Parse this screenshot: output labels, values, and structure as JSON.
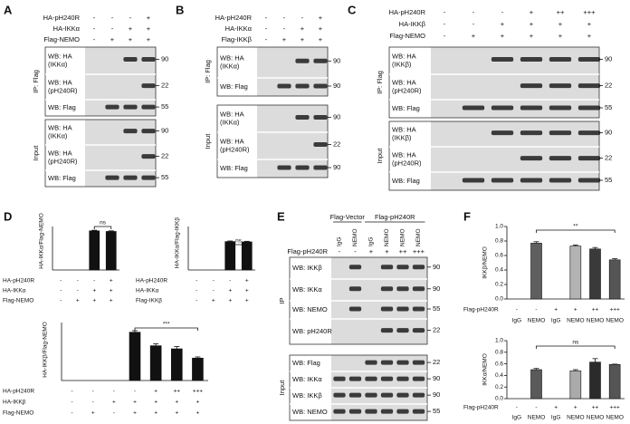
{
  "panels": [
    {
      "label": "A",
      "conditions": [
        {
          "name": "HA-pH240R",
          "signs": [
            "-",
            "-",
            "-",
            "+"
          ]
        },
        {
          "name": "HA-IKKα",
          "signs": [
            "-",
            "-",
            "+",
            "+"
          ]
        },
        {
          "name": "Flag-NEMO",
          "signs": [
            "-",
            "+",
            "+",
            "+"
          ]
        }
      ],
      "ip_label": "IP: Flag",
      "ip_rows": [
        {
          "label": [
            "WB: HA",
            "(IKKα)"
          ],
          "marker": 90
        },
        {
          "label": [
            "WB: HA",
            "(pH240R)"
          ],
          "marker": 22
        },
        {
          "label": [
            "WB: Flag"
          ],
          "marker": 55
        }
      ],
      "input_label": "Input",
      "input_rows": [
        {
          "label": [
            "WB: HA",
            "(IKKα)"
          ],
          "marker": 90
        },
        {
          "label": [
            "WB: HA",
            "(pH240R)"
          ],
          "marker": 22
        },
        {
          "label": [
            "WB: Flag"
          ],
          "marker": 55
        }
      ]
    },
    {
      "label": "B",
      "conditions": [
        {
          "name": "HA-pH240R",
          "signs": [
            "-",
            "-",
            "-",
            "+"
          ]
        },
        {
          "name": "HA-IKKα",
          "signs": [
            "-",
            "-",
            "+",
            "+"
          ]
        },
        {
          "name": "Flag-IKKβ",
          "signs": [
            "-",
            "+",
            "+",
            "+"
          ]
        }
      ],
      "ip_label": "IP: Flag",
      "ip_rows": [
        {
          "label": [
            "WB: HA",
            "(IKKα)"
          ],
          "marker": 90
        },
        {
          "label": [
            "WB: Flag"
          ],
          "marker": 90
        }
      ],
      "input_label": "Input",
      "input_rows": [
        {
          "label": [
            "WB: HA",
            "(IKKα)"
          ],
          "marker": 90
        },
        {
          "label": [
            "WB: HA",
            "(pH240R)"
          ],
          "marker": 22
        },
        {
          "label": [
            "WB: Flag"
          ],
          "marker": 90
        }
      ]
    },
    {
      "label": "C",
      "conditions": [
        {
          "name": "HA-pH240R",
          "signs": [
            "-",
            "-",
            "-",
            "+",
            "++",
            "+++"
          ]
        },
        {
          "name": "HA-IKKβ",
          "signs": [
            "-",
            "-",
            "+",
            "+",
            "+",
            "+"
          ]
        },
        {
          "name": "Flag-NEMO",
          "signs": [
            "-",
            "+",
            "+",
            "+",
            "+",
            "+"
          ]
        }
      ],
      "ip_label": "IP: Flag",
      "ip_rows": [
        {
          "label": [
            "WB: HA",
            "(IKKβ)"
          ],
          "marker": 90
        },
        {
          "label": [
            "WB: HA",
            "(pH240R)"
          ],
          "marker": 22
        },
        {
          "label": [
            "WB: Flag"
          ],
          "marker": 55
        }
      ],
      "input_label": "Input",
      "input_rows": [
        {
          "label": [
            "WB: HA",
            "(IKKβ)"
          ],
          "marker": 90
        },
        {
          "label": [
            "WB: HA",
            "(pH240R)"
          ],
          "marker": 22
        },
        {
          "label": [
            "WB: Flag"
          ],
          "marker": 55
        }
      ]
    },
    {
      "label": "E",
      "groups": [
        "Flag-Vector",
        "Flag-pH240R"
      ],
      "lanes": [
        "IgG",
        "NEMO",
        "IgG",
        "NEMO",
        "NEMO",
        "NEMO"
      ],
      "conditions": [
        {
          "name": "Flag-pH240R",
          "signs": [
            "-",
            "-",
            "+",
            "+",
            "++",
            "+++"
          ]
        }
      ],
      "ip_label": "IP",
      "ip_rows": [
        {
          "label": [
            "WB: IKKβ"
          ],
          "marker": 90
        },
        {
          "label": [
            "WB: IKKα"
          ],
          "marker": 90
        },
        {
          "label": [
            "WB: NEMO"
          ],
          "marker": 55
        },
        {
          "label": [
            "WB: pH240R"
          ],
          "marker": 22
        }
      ],
      "input_label": "Input",
      "input_rows": [
        {
          "label": [
            "WB: Flag"
          ],
          "marker": 22
        },
        {
          "label": [
            "WB: IKKα"
          ],
          "marker": 90
        },
        {
          "label": [
            "WB: IKKβ"
          ],
          "marker": 90
        },
        {
          "label": [
            "WB: NEMO"
          ],
          "marker": 55
        }
      ]
    }
  ],
  "chart_data": [
    {
      "type": "bar",
      "panel": "D",
      "ylabel": "HA-IKKα/Flag-NEMO",
      "conditions": [
        {
          "name": "HA-pH240R",
          "signs": [
            "-",
            "-",
            "-",
            "+"
          ]
        },
        {
          "name": "HA-IKKα",
          "signs": [
            "-",
            "-",
            "+",
            "+"
          ]
        },
        {
          "name": "Flag-NEMO",
          "signs": [
            "-",
            "+",
            "+",
            "+"
          ]
        }
      ],
      "values": [
        null,
        null,
        1.35,
        1.33
      ],
      "errors": [
        null,
        null,
        0.02,
        0.02
      ],
      "color": "#111111",
      "ylim": [
        0,
        1.5
      ],
      "annotation": "ns"
    },
    {
      "type": "bar",
      "ylabel": "HA-IKKα/Flag-IKKβ",
      "conditions": [
        {
          "name": "HA-pH240R",
          "signs": [
            "-",
            "-",
            "-",
            "+"
          ]
        },
        {
          "name": "HA-IKKα",
          "signs": [
            "-",
            "-",
            "+",
            "+"
          ]
        },
        {
          "name": "Flag-IKKβ",
          "signs": [
            "-",
            "+",
            "+",
            "+"
          ]
        }
      ],
      "values": [
        null,
        null,
        0.98,
        0.97
      ],
      "errors": [
        null,
        null,
        0.02,
        0.02
      ],
      "color": "#111111",
      "ylim": [
        0,
        1.5
      ],
      "annotation": "ns"
    },
    {
      "type": "bar",
      "ylabel": "HA-IKKβ/Flag-NEMO",
      "conditions": [
        {
          "name": "HA-pH240R",
          "signs": [
            "-",
            "-",
            "-",
            "-",
            "+",
            "++",
            "+++"
          ]
        },
        {
          "name": "HA-IKKβ",
          "signs": [
            "-",
            "-",
            "+",
            "+",
            "+",
            "+",
            "+"
          ]
        },
        {
          "name": "Flag-NEMO",
          "signs": [
            "-",
            "+",
            "-",
            "+",
            "+",
            "+",
            "+"
          ]
        }
      ],
      "values": [
        null,
        null,
        null,
        1.25,
        0.9,
        0.82,
        0.58
      ],
      "errors": [
        null,
        null,
        null,
        0.04,
        0.05,
        0.06,
        0.03
      ],
      "color": "#111111",
      "ylim": [
        0,
        1.5
      ],
      "annotation": "***"
    },
    {
      "type": "bar",
      "panel": "F",
      "ylabel": "IKKβ/NEMO",
      "categories": [
        "IgG",
        "NEMO",
        "IgG",
        "NEMO",
        "NEMO",
        "NEMO"
      ],
      "conditions": [
        {
          "name": "Flag-pH240R",
          "signs": [
            "-",
            "-",
            "+",
            "+",
            "++",
            "+++"
          ]
        }
      ],
      "values": [
        null,
        0.77,
        null,
        0.73,
        0.69,
        0.54
      ],
      "errors": [
        null,
        0.02,
        null,
        0.015,
        0.02,
        0.015
      ],
      "colors": [
        null,
        "#5f5f5f",
        null,
        "#b3b3b3",
        "#3a3a3a",
        "#555555"
      ],
      "ylim": [
        0,
        1.0
      ],
      "yticks": [
        {
          "value": 0,
          "label": "0.0"
        },
        {
          "value": 0.2,
          "label": "0.2"
        },
        {
          "value": 0.4,
          "label": "0.4"
        },
        {
          "value": 0.6,
          "label": "0.6"
        },
        {
          "value": 0.8,
          "label": "0.8"
        },
        {
          "value": 1.0,
          "label": "1.0"
        }
      ],
      "annotation": "**"
    },
    {
      "type": "bar",
      "ylabel": "IKKα/NEMO",
      "categories": [
        "IgG",
        "NEMO",
        "IgG",
        "NEMO",
        "NEMO",
        "NEMO"
      ],
      "conditions": [
        {
          "name": "Flag-pH240R",
          "signs": [
            "-",
            "-",
            "+",
            "+",
            "++",
            "+++"
          ]
        }
      ],
      "values": [
        null,
        0.5,
        null,
        0.48,
        0.63,
        0.59
      ],
      "errors": [
        null,
        0.02,
        null,
        0.02,
        0.06,
        0.005
      ],
      "colors": [
        null,
        "#5a5a5a",
        null,
        "#aaaaaa",
        "#2b2b2b",
        "#555555"
      ],
      "ylim": [
        0,
        1.0
      ],
      "yticks": [
        {
          "value": 0,
          "label": "0.0"
        },
        {
          "value": 0.2,
          "label": "0.2"
        },
        {
          "value": 0.4,
          "label": "0.4"
        },
        {
          "value": 0.6,
          "label": "0.6"
        },
        {
          "value": 0.8,
          "label": "0.8"
        },
        {
          "value": 1.0,
          "label": "1.0"
        }
      ],
      "annotation": "ns"
    }
  ]
}
